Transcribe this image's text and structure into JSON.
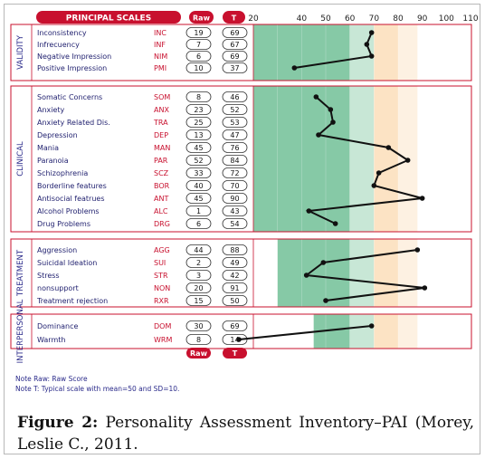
{
  "chart_data": {
    "type": "line",
    "header": {
      "title": "PRINCIPAL SCALES",
      "raw_label": "Raw",
      "t_label": "T"
    },
    "x_axis": {
      "ticks": [
        20,
        30,
        40,
        50,
        60,
        70,
        80,
        90,
        100,
        110
      ],
      "tick_labels": [
        "20",
        "",
        "40",
        "50",
        "60",
        "70",
        "80",
        "90",
        "100",
        "110"
      ],
      "range": [
        20,
        110
      ]
    },
    "legend_footer": {
      "raw_label": "Raw",
      "t_label": "T"
    },
    "colors": {
      "red": "#c8102e",
      "band_green": "#86c9a6",
      "band_light": "#c8e7d6",
      "band_orange": "#fce3c4",
      "line": "#111111"
    },
    "sections": [
      {
        "name": "VALIDITY",
        "rows": [
          {
            "name": "Inconsistency",
            "code": "INC",
            "raw": "19",
            "t": "69",
            "t_value": 69
          },
          {
            "name": "Infrecuency",
            "code": "INF",
            "raw": "7",
            "t": "67",
            "t_value": 67
          },
          {
            "name": "Negative Impression",
            "code": "NIM",
            "raw": "6",
            "t": "69",
            "t_value": 69
          },
          {
            "name": "Positive Impression",
            "code": "PMI",
            "raw": "10",
            "t": "37",
            "t_value": 37
          }
        ]
      },
      {
        "name": "CLINICAL",
        "rows": [
          {
            "name": "Somatic Concerns",
            "code": "SOM",
            "raw": "8",
            "t": "46",
            "t_value": 46
          },
          {
            "name": "Anxiety",
            "code": "ANX",
            "raw": "23",
            "t": "52",
            "t_value": 52
          },
          {
            "name": "Anxiety Related Dis.",
            "code": "TRA",
            "raw": "25",
            "t": "53",
            "t_value": 53
          },
          {
            "name": "Depression",
            "code": "DEP",
            "raw": "13",
            "t": "47",
            "t_value": 47
          },
          {
            "name": "Mania",
            "code": "MAN",
            "raw": "45",
            "t": "76",
            "t_value": 76
          },
          {
            "name": "Paranoia",
            "code": "PAR",
            "raw": "52",
            "t": "84",
            "t_value": 84
          },
          {
            "name": "Schizophrenia",
            "code": "SCZ",
            "raw": "33",
            "t": "72",
            "t_value": 72
          },
          {
            "name": "Borderline features",
            "code": "BOR",
            "raw": "40",
            "t": "70",
            "t_value": 70
          },
          {
            "name": "Antisocial featrues",
            "code": "ANT",
            "raw": "45",
            "t": "90",
            "t_value": 90
          },
          {
            "name": "Alcohol Problems",
            "code": "ALC",
            "raw": "1",
            "t": "43",
            "t_value": 43
          },
          {
            "name": "Drug Problems",
            "code": "DRG",
            "raw": "6",
            "t": "54",
            "t_value": 54
          }
        ]
      },
      {
        "name": "TREATMENT",
        "rows": [
          {
            "name": "Aggression",
            "code": "AGG",
            "raw": "44",
            "t": "88",
            "t_value": 88
          },
          {
            "name": "Suicidal Ideation",
            "code": "SUI",
            "raw": "2",
            "t": "49",
            "t_value": 49
          },
          {
            "name": "Stress",
            "code": "STR",
            "raw": "3",
            "t": "42",
            "t_value": 42
          },
          {
            "name": "nonsupport",
            "code": "NON",
            "raw": "20",
            "t": "91",
            "t_value": 91
          },
          {
            "name": "Treatment rejection",
            "code": "RXR",
            "raw": "15",
            "t": "50",
            "t_value": 50
          }
        ]
      },
      {
        "name": "INTERPERSONAL",
        "rows": [
          {
            "name": "Dominance",
            "code": "DOM",
            "raw": "30",
            "t": "69",
            "t_value": 69
          },
          {
            "name": "Warmth",
            "code": "WRM",
            "raw": "8",
            "t": "14",
            "t_value": 14
          }
        ]
      }
    ],
    "notes": [
      "Note Raw: Raw Score",
      "Note T: Typical scale with mean=50 and SD=10."
    ]
  },
  "caption": {
    "label": "Figure 2:",
    "line1": "Personality Assessment Inventory–PAI (Morey,",
    "line2": "Leslie C., 2011."
  }
}
